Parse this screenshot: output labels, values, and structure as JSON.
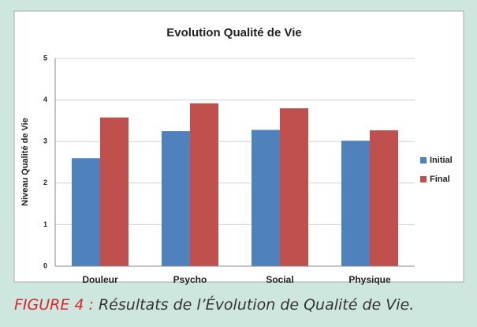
{
  "chart_data": {
    "type": "bar",
    "title": "Evolution Qualité de Vie",
    "ylabel": "Niveau Qualité de Vie",
    "categories": [
      "Douleur",
      "Psycho",
      "Social",
      "Physique"
    ],
    "series": [
      {
        "name": "Initial",
        "color": "#4f81bd",
        "values": [
          2.6,
          3.25,
          3.28,
          3.02
        ]
      },
      {
        "name": "Final",
        "color": "#c0504d",
        "values": [
          3.58,
          3.92,
          3.8,
          3.27
        ]
      }
    ],
    "ylim": [
      0,
      5
    ],
    "yticks": [
      0,
      1,
      2,
      3,
      4,
      5
    ],
    "grid": true,
    "legend": "right"
  },
  "caption": {
    "label": "FIGURE 4 :",
    "text": "Résultats de l’Évolution de Qualité de Vie."
  }
}
